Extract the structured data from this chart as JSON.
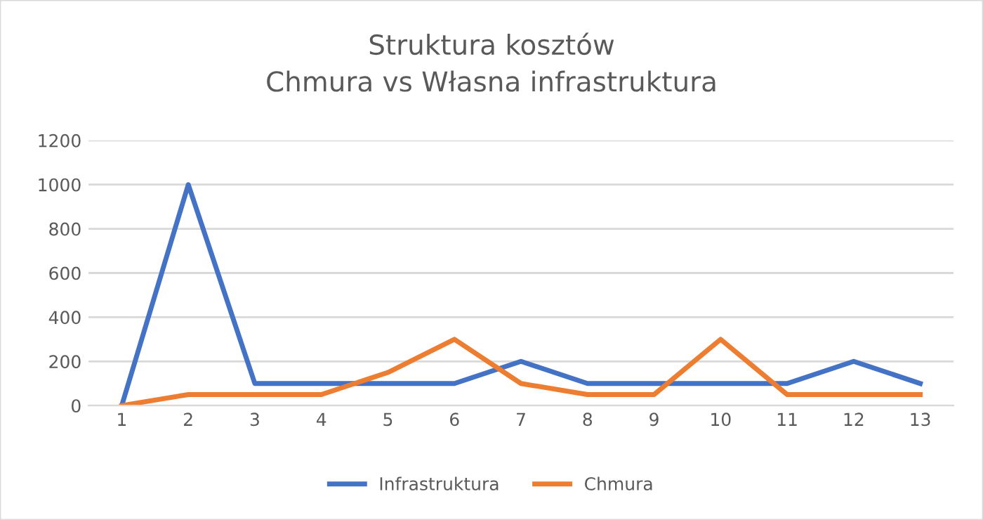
{
  "chart_data": {
    "type": "line",
    "title": "Struktura kosztów\nChmura vs Własna infrastruktura",
    "categories": [
      "1",
      "2",
      "3",
      "4",
      "5",
      "6",
      "7",
      "8",
      "9",
      "10",
      "11",
      "12",
      "13"
    ],
    "series": [
      {
        "name": "Infrastruktura",
        "color": "#4472c4",
        "values": [
          0,
          1000,
          100,
          100,
          100,
          100,
          200,
          100,
          100,
          100,
          100,
          200,
          100
        ]
      },
      {
        "name": "Chmura",
        "color": "#ed7d31",
        "values": [
          0,
          50,
          50,
          50,
          150,
          300,
          100,
          50,
          50,
          300,
          50,
          50,
          50
        ]
      }
    ],
    "ylim": [
      0,
      1200
    ],
    "yticks": [
      0,
      200,
      400,
      600,
      800,
      1000,
      1200
    ],
    "grid": "y",
    "legend": "bottom",
    "marker": "none",
    "line_style": "solid"
  }
}
